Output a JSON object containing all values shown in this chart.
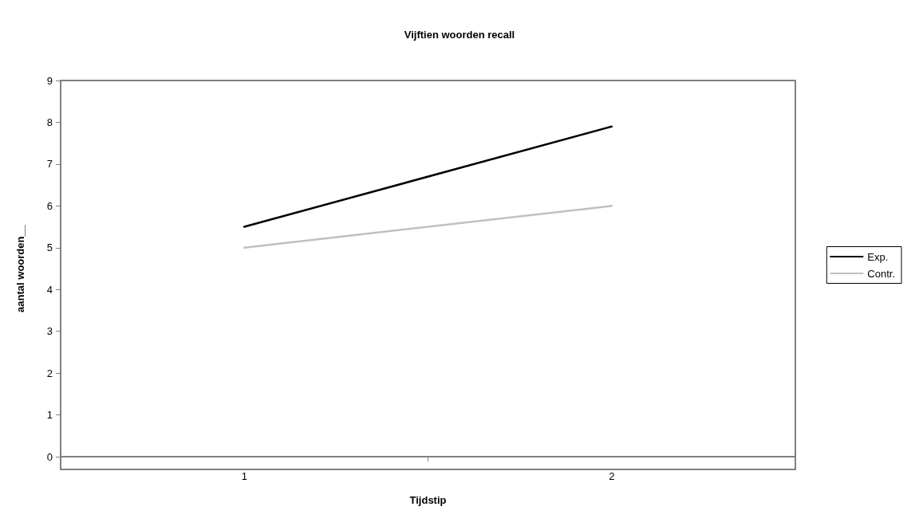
{
  "chart_data": {
    "type": "line",
    "title": "Vijftien woorden recall",
    "xlabel": "Tijdstip",
    "ylabel": "aantal woorden__",
    "categories": [
      "1",
      "2"
    ],
    "series": [
      {
        "name": "Exp.",
        "color": "#000000",
        "values": [
          5.5,
          7.9
        ]
      },
      {
        "name": "Contr.",
        "color": "#c0c0c0",
        "values": [
          5.0,
          6.0
        ]
      }
    ],
    "ylim": [
      0,
      9
    ],
    "yticks": [
      0,
      1,
      2,
      3,
      4,
      5,
      6,
      7,
      8,
      9
    ],
    "grid": false,
    "legend": "right",
    "marker": "none",
    "line_style": "solid"
  }
}
